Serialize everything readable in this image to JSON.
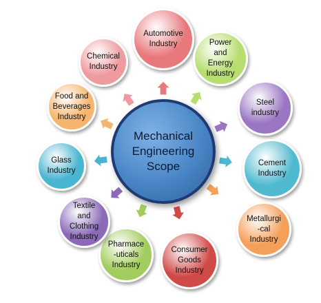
{
  "center": {
    "label": "Mechanical\nEngineering\nScope",
    "color": "#4a86c6"
  },
  "industries": [
    {
      "id": "automotive",
      "label": "Automotive\nIndustry",
      "color": "#e8787c"
    },
    {
      "id": "power",
      "label": "Power\nand\nEnergy\nIndustry",
      "color": "#b6dd6e"
    },
    {
      "id": "steel",
      "label": "Steel\nindustry",
      "color": "#9a76c2"
    },
    {
      "id": "cement",
      "label": "Cement\nIndustry",
      "color": "#4fb9cf"
    },
    {
      "id": "metallurgical",
      "label": "Metallurgi\n-cal\nIndustry",
      "color": "#f4a05a"
    },
    {
      "id": "consumer",
      "label": "Consumer\nGoods\nIndustry",
      "color": "#d04a48"
    },
    {
      "id": "pharma",
      "label": "Pharmace\n-uticals\nIndustry",
      "color": "#a2cc5e"
    },
    {
      "id": "textile",
      "label": "Textile\nand\nClothing\nIndustry",
      "color": "#8b6bb8"
    },
    {
      "id": "glass",
      "label": "Glass\nIndustry",
      "color": "#4ab5d0"
    },
    {
      "id": "food",
      "label": "Food and\nBeverages\nIndustry",
      "color": "#f5b56e"
    },
    {
      "id": "chemical",
      "label": "Chemical\nIndustry",
      "color": "#ef9a9e"
    }
  ]
}
